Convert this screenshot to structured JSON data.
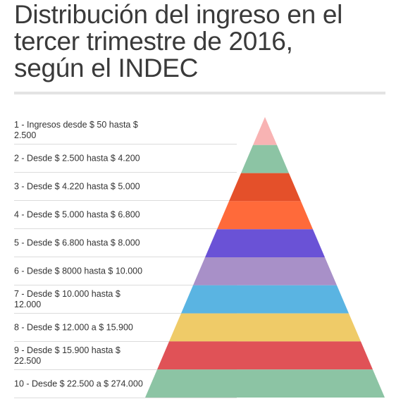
{
  "title": {
    "line1": "Distribución del ingreso en el",
    "line2": "tercer trimestre de 2016,",
    "line3": "según el INDEC"
  },
  "levels": [
    {
      "label": "1 - Ingresos desde $ 50 hasta $ 2.500",
      "color": "#f8b3b3"
    },
    {
      "label": "2 - Desde $ 2.500 hasta $ 4.200",
      "color": "#8cc4a4"
    },
    {
      "label": "3 - Desde $ 4.220 hasta $ 5.000",
      "color": "#e4502a"
    },
    {
      "label": "4 - Desde $ 5.000 hasta $ 6.800",
      "color": "#ff6a3a"
    },
    {
      "label": "5 - Desde $ 6.800 hasta $ 8.000",
      "color": "#6a52d6"
    },
    {
      "label": "6 - Desde $ 8000 hasta $ 10.000",
      "color": "#a890c8"
    },
    {
      "label": "7 - Desde $ 10.000 hasta $ 12.000",
      "color": "#5ab4e2"
    },
    {
      "label": "8 - Desde $ 12.000 a $ 15.900",
      "color": "#efcb68"
    },
    {
      "label": "9 - Desde $ 15.900 hasta $ 22.500",
      "color": "#e05257"
    },
    {
      "label": "10 - Desde $ 22.500 a $ 274.000",
      "color": "#8cc4a4"
    }
  ]
}
